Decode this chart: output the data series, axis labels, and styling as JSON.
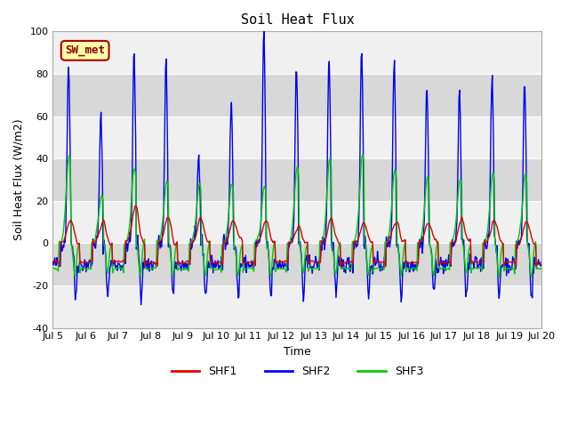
{
  "title": "Soil Heat Flux",
  "xlabel": "Time",
  "ylabel": "Soil Heat Flux (W/m2)",
  "ylim": [
    -40,
    100
  ],
  "xlim_days": [
    5,
    20
  ],
  "series_colors": {
    "SHF1": "#dd0000",
    "SHF2": "#0000ee",
    "SHF3": "#00cc00"
  },
  "legend_label": "SW_met",
  "legend_box_bg": "#ffffaa",
  "legend_box_edge": "#aa0000",
  "bg_color_light": "#f0f0f0",
  "bg_color_dark": "#d8d8d8",
  "grid_color": "#ffffff",
  "xtick_labels": [
    "Jul 5",
    "Jul 6",
    "Jul 7",
    "Jul 8",
    "Jul 9",
    "Jul 10",
    "Jul 11",
    "Jul 12",
    "Jul 13",
    "Jul 14",
    "Jul 15",
    "Jul 16",
    "Jul 17",
    "Jul 18",
    "Jul 19",
    "Jul 20"
  ],
  "xtick_positions": [
    5,
    6,
    7,
    8,
    9,
    10,
    11,
    12,
    13,
    14,
    15,
    16,
    17,
    18,
    19,
    20
  ],
  "ytick_labels": [
    "-40",
    "-20",
    "0",
    "20",
    "40",
    "60",
    "80",
    "100"
  ],
  "ytick_positions": [
    -40,
    -20,
    0,
    20,
    40,
    60,
    80,
    100
  ],
  "linewidth": 1.0,
  "peak_times_shf2": [
    5.48,
    6.47,
    7.49,
    8.47,
    9.47,
    10.47,
    11.47,
    12.47,
    13.47,
    14.47,
    15.47,
    16.47,
    17.47,
    18.47,
    19.47
  ],
  "peak_heights_shf2": [
    86,
    60,
    90,
    85,
    41,
    70,
    100,
    84,
    88,
    93,
    87,
    74,
    73,
    81,
    76
  ],
  "peak_times_shf1": [
    5.52,
    6.52,
    7.52,
    8.52,
    9.52,
    10.52,
    11.52,
    12.52,
    13.52,
    14.52,
    15.52,
    16.52,
    17.52,
    18.52,
    19.52
  ],
  "peak_heights_shf1": [
    10,
    9,
    15,
    11,
    10,
    9,
    10,
    7,
    10,
    9,
    9,
    9,
    9,
    9,
    9
  ],
  "peak_times_shf3": [
    5.5,
    6.5,
    7.5,
    8.5,
    9.5,
    10.5,
    11.5,
    12.5,
    13.5,
    14.5,
    15.5,
    16.5,
    17.5,
    18.5,
    19.5
  ],
  "peak_heights_shf3": [
    42,
    22,
    35,
    28,
    28,
    28,
    27,
    35,
    40,
    42,
    35,
    32,
    30,
    33,
    32
  ]
}
